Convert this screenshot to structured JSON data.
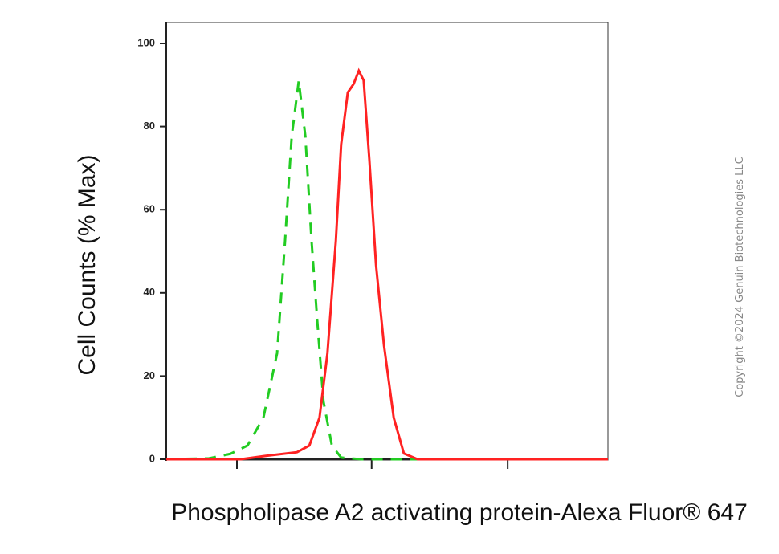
{
  "chart_data": {
    "type": "line",
    "x_label": "Phospholipase A2 activating protein-Alexa Fluor® 647",
    "y_label": "Cell Counts (% Max)",
    "copyright": "Copyright ©2024 Genuin Biotechnologies LLC",
    "xlim": [
      0,
      100
    ],
    "xticks": [
      16,
      46.5,
      77.3
    ],
    "ylim": [
      0,
      100
    ],
    "yticks": [
      0,
      20,
      40,
      60,
      80,
      100
    ],
    "series": [
      {
        "color": "#22cc22",
        "dashed": true,
        "x": [
          0,
          9.6,
          14.5,
          18.4,
          22,
          25.1,
          26.9,
          28.4,
          30,
          31.5,
          32.9,
          34.2,
          35.6,
          37.5,
          39.6,
          44.2,
          100
        ],
        "values": [
          0,
          0.2,
          1.3,
          3.3,
          10,
          25.5,
          52.5,
          77.6,
          91,
          77.6,
          52.5,
          33.2,
          13.9,
          3.3,
          0.4,
          0,
          0
        ]
      },
      {
        "color": "#ff2222",
        "dashed": false,
        "x": [
          0,
          16.9,
          22.4,
          29.6,
          32.4,
          34.7,
          36.5,
          38.4,
          39.6,
          41.1,
          42.4,
          43.6,
          44.7,
          46,
          47.5,
          49.3,
          51.5,
          53.8,
          56.9,
          100
        ],
        "values": [
          0,
          0,
          0.8,
          1.7,
          3.3,
          10,
          25.5,
          52.5,
          75.7,
          88.2,
          90.2,
          93.4,
          91.1,
          71.8,
          46.7,
          27.4,
          10,
          1.4,
          0,
          0
        ]
      }
    ]
  }
}
